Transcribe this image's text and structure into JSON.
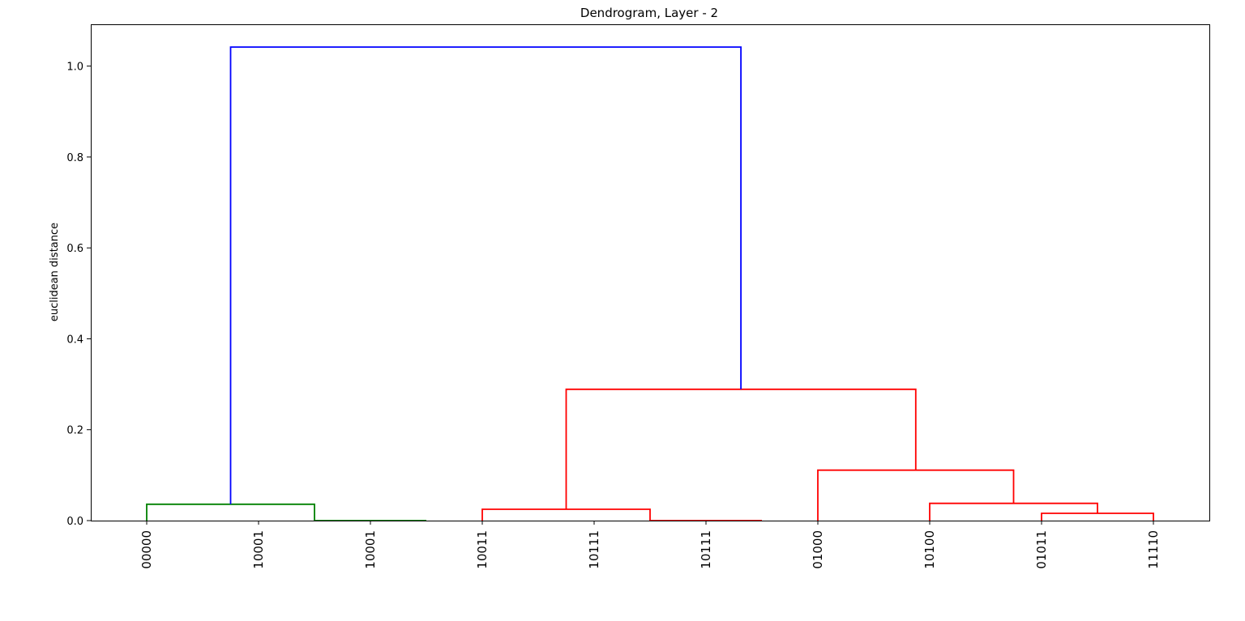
{
  "chart_data": {
    "type": "dendrogram",
    "title": "Dendrogram, Layer - 2",
    "ylabel": "euclidean distance",
    "xlabel": "",
    "ylim": [
      0,
      1.092
    ],
    "yticks": [
      "0.0",
      "0.2",
      "0.4",
      "0.6",
      "0.8",
      "1.0"
    ],
    "leaves": [
      "00000",
      "10001",
      "10001",
      "10011",
      "10111",
      "10111",
      "01000",
      "10100",
      "01011",
      "11110"
    ],
    "colors": {
      "green": "#008000",
      "red": "#ff0000",
      "blue": "#0000ff"
    },
    "links": [
      {
        "x": [
          1.5,
          1.5,
          2.5,
          2.5
        ],
        "y": [
          0.0,
          0.0,
          0.0,
          0.0
        ],
        "color": "green"
      },
      {
        "x": [
          0.0,
          0.0,
          1.5,
          1.5
        ],
        "y": [
          0.0,
          0.036,
          0.036,
          0.0
        ],
        "color": "green"
      },
      {
        "x": [
          4.5,
          4.5,
          5.5,
          5.5
        ],
        "y": [
          0.0,
          0.0,
          0.0,
          0.0
        ],
        "color": "red"
      },
      {
        "x": [
          3.0,
          3.0,
          4.5,
          4.5
        ],
        "y": [
          0.0,
          0.025,
          0.025,
          0.0
        ],
        "color": "red"
      },
      {
        "x": [
          8.0,
          8.0,
          9.0,
          9.0
        ],
        "y": [
          0.0,
          0.016,
          0.016,
          0.0
        ],
        "color": "red"
      },
      {
        "x": [
          7.0,
          7.0,
          8.5,
          8.5
        ],
        "y": [
          0.0,
          0.038,
          0.038,
          0.016
        ],
        "color": "red"
      },
      {
        "x": [
          6.0,
          6.0,
          7.75,
          7.75
        ],
        "y": [
          0.0,
          0.111,
          0.111,
          0.038
        ],
        "color": "red"
      },
      {
        "x": [
          3.75,
          3.75,
          6.875,
          6.875
        ],
        "y": [
          0.025,
          0.289,
          0.289,
          0.111
        ],
        "color": "red"
      },
      {
        "x": [
          0.75,
          0.75,
          5.3125,
          5.3125
        ],
        "y": [
          0.036,
          1.042,
          1.042,
          0.289
        ],
        "color": "blue"
      }
    ]
  }
}
